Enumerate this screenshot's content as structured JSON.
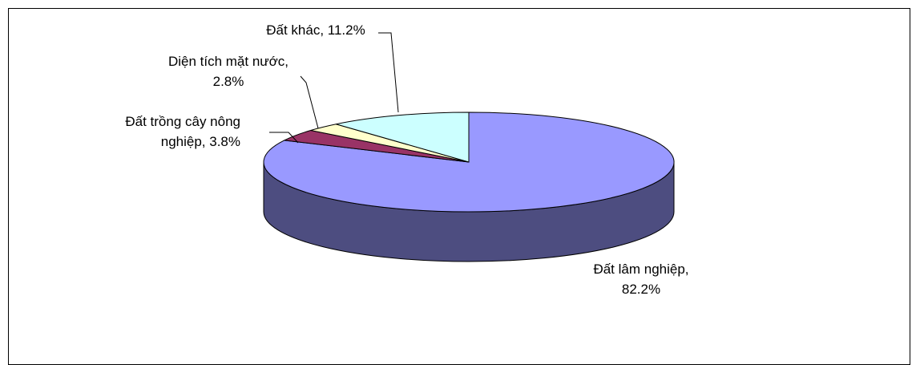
{
  "chart_data": {
    "type": "pie",
    "style": "3d-exploded-none",
    "title": "",
    "slices": [
      {
        "label_lines": [
          "Đất lâm nghiệp,",
          "82.2%"
        ],
        "name": "Đất lâm nghiệp",
        "value": 82.2,
        "color": "#9999ff",
        "side_color": "#4d4d80"
      },
      {
        "label_lines": [
          "Đất trồng cây nông",
          "nghiệp, 3.8%"
        ],
        "name": "Đất trồng cây nông nghiệp",
        "value": 3.8,
        "color": "#993366",
        "side_color": "#4d1a33"
      },
      {
        "label_lines": [
          "Diện tích mặt nước,",
          "2.8%"
        ],
        "name": "Diện tích mặt nước",
        "value": 2.8,
        "color": "#ffffcc",
        "side_color": "#808066"
      },
      {
        "label_lines": [
          "Đất khác, 11.2%"
        ],
        "name": "Đất khác",
        "value": 11.2,
        "color": "#ccffff",
        "side_color": "#668080"
      }
    ]
  }
}
